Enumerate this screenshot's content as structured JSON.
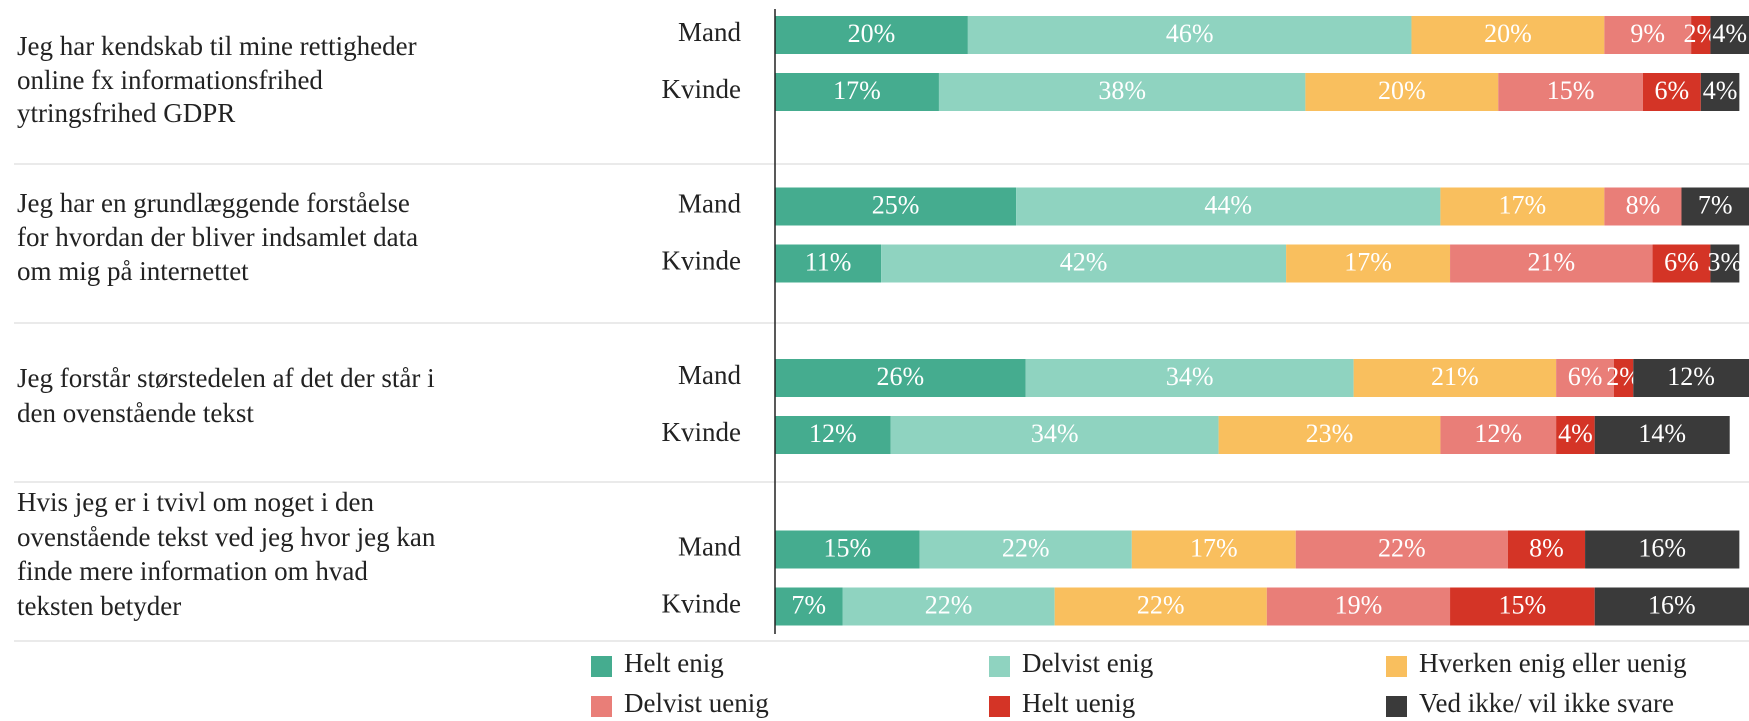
{
  "chart_data": {
    "type": "stacked-bar-horizontal",
    "questions": [
      [
        "Jeg har kendskab til mine rettigheder",
        "online fx informationsfrihed",
        "ytringsfrihed GDPR"
      ],
      [
        "Jeg har en grundlæggende forståelse",
        "for hvordan der bliver indsamlet data",
        "om mig på internettet"
      ],
      [
        "Jeg forstår størstedelen af det der står i",
        "den ovenstående tekst"
      ],
      [
        "Hvis jeg er i tvivl om noget i den",
        "ovenstående tekst ved jeg hvor jeg kan",
        "finde mere information om hvad",
        "teksten betyder"
      ]
    ],
    "subgroups": [
      "Mand",
      "Kvinde"
    ],
    "xlim": [
      0,
      101
    ],
    "series": [
      {
        "name": "Helt enig",
        "color": "#45ac8f",
        "values": [
          20,
          17,
          25,
          11,
          26,
          12,
          15,
          7
        ],
        "value_labels": [
          "20%",
          "17%",
          "25%",
          "11%",
          "26%",
          "12%",
          "15%",
          "7%"
        ]
      },
      {
        "name": "Delvist enig",
        "color": "#8fd3c0",
        "values": [
          46,
          38,
          44,
          42,
          34,
          34,
          22,
          22
        ],
        "value_labels": [
          "46%",
          "38%",
          "44%",
          "42%",
          "34%",
          "34%",
          "22%",
          "22%"
        ]
      },
      {
        "name": "Hverken enig eller uenig",
        "color": "#f9bf5e",
        "values": [
          20,
          20,
          17,
          17,
          21,
          23,
          17,
          22
        ],
        "value_labels": [
          "20%",
          "20%",
          "17%",
          "17%",
          "21%",
          "23%",
          "17%",
          "22%"
        ]
      },
      {
        "name": "Delvist uenig",
        "color": "#e97e78",
        "values": [
          9,
          15,
          8,
          21,
          6,
          12,
          22,
          19
        ],
        "value_labels": [
          "9%",
          "15%",
          "8%",
          "21%",
          "6%",
          "12%",
          "22%",
          "19%"
        ]
      },
      {
        "name": "Helt uenig",
        "color": "#d43426",
        "values": [
          2,
          6,
          null,
          6,
          2,
          4,
          8,
          15
        ],
        "value_labels": [
          "2%",
          "6%",
          null,
          "6%",
          "2%",
          "4%",
          "8%",
          "15%"
        ]
      },
      {
        "name": "Ved ikke/ vil ikke svare",
        "color": "#3a3a3a",
        "values": [
          4,
          4,
          7,
          3,
          12,
          14,
          16,
          16
        ],
        "value_labels": [
          "4%",
          "4%",
          "7%",
          "3%",
          "12%",
          "14%",
          "16%",
          "16%"
        ]
      }
    ]
  }
}
